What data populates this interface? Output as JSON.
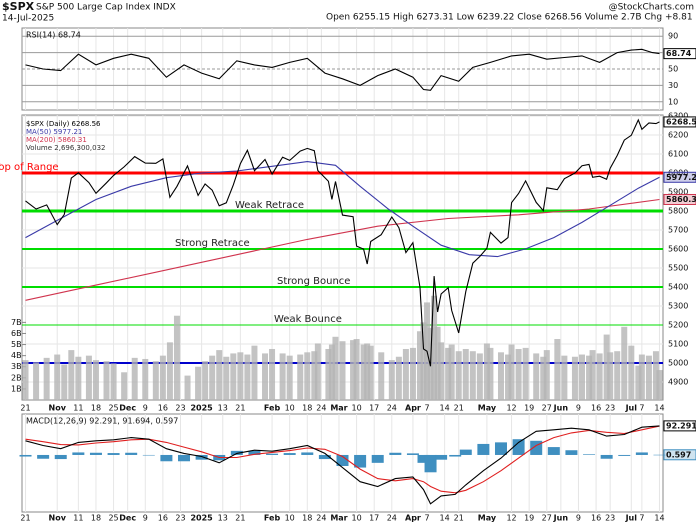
{
  "header": {
    "symbol": "$SPX",
    "name": "S&P 500 Large Cap Index INDX",
    "date": "14-Jul-2025",
    "quote": "Open 6255.15 High 6273.31 Low 6239.22 Close 6268.56 Volume 2.7B Chg +8.81 (+0.14%)",
    "source": "@StockCharts.com"
  },
  "chart_data": [
    {
      "type": "line",
      "title": "RSI(14) 68.74",
      "ylim": [
        0,
        100
      ],
      "yticks": [
        10,
        30,
        50,
        70,
        90
      ],
      "series": [
        {
          "name": "RSI(14)",
          "type": "line",
          "color": "#000000",
          "tag": "68.74",
          "x": [
            0,
            5,
            10,
            15,
            20,
            25,
            30,
            35,
            40,
            45,
            50,
            55,
            60,
            65,
            70,
            75,
            80,
            85,
            90,
            95,
            100,
            105,
            110,
            113,
            115,
            118,
            123,
            127,
            132,
            138,
            143,
            148,
            153,
            158,
            163,
            168,
            172,
            175,
            178,
            180
          ],
          "values": [
            55,
            50,
            48,
            68,
            55,
            63,
            68,
            63,
            40,
            55,
            45,
            38,
            60,
            55,
            52,
            58,
            63,
            45,
            38,
            30,
            42,
            50,
            40,
            25,
            24,
            42,
            35,
            52,
            58,
            66,
            68,
            62,
            64,
            66,
            58,
            70,
            73,
            74,
            70,
            68.74
          ]
        }
      ]
    },
    {
      "type": "line",
      "xlim": [
        -1,
        181
      ],
      "xticks": [
        {
          "value": 0,
          "label": "21"
        },
        {
          "value": 9,
          "label": "Nov"
        },
        {
          "value": 15,
          "label": "11"
        },
        {
          "value": 20,
          "label": "18"
        },
        {
          "value": 25,
          "label": "25"
        },
        {
          "value": 29,
          "label": "Dec"
        },
        {
          "value": 34,
          "label": "9"
        },
        {
          "value": 39,
          "label": "16"
        },
        {
          "value": 44,
          "label": "23"
        },
        {
          "value": 50,
          "label": "2025"
        },
        {
          "value": 56,
          "label": "13"
        },
        {
          "value": 61,
          "label": "21"
        },
        {
          "value": 70,
          "label": "Feb"
        },
        {
          "value": 75,
          "label": "10"
        },
        {
          "value": 80,
          "label": "18"
        },
        {
          "value": 84,
          "label": "24"
        },
        {
          "value": 89,
          "label": "Mar"
        },
        {
          "value": 94,
          "label": "10"
        },
        {
          "value": 99,
          "label": "17"
        },
        {
          "value": 104,
          "label": "24"
        },
        {
          "value": 110,
          "label": "Apr"
        },
        {
          "value": 114,
          "label": "7"
        },
        {
          "value": 119,
          "label": "14"
        },
        {
          "value": 123,
          "label": "21"
        },
        {
          "value": 131,
          "label": "May"
        },
        {
          "value": 138,
          "label": "12"
        },
        {
          "value": 143,
          "label": "19"
        },
        {
          "value": 148,
          "label": "27"
        },
        {
          "value": 152,
          "label": "Jun"
        },
        {
          "value": 157,
          "label": "9"
        },
        {
          "value": 162,
          "label": "16"
        },
        {
          "value": 166,
          "label": "23"
        },
        {
          "value": 172,
          "label": "Jul"
        },
        {
          "value": 175,
          "label": "7"
        },
        {
          "value": 180,
          "label": "14"
        }
      ],
      "ylim": [
        4805,
        6305
      ],
      "yticks": [
        4900,
        5000,
        5100,
        5200,
        5300,
        5400,
        5500,
        5600,
        5700,
        5800,
        5900,
        6000,
        6100,
        6200,
        6300
      ],
      "y2lim": [
        0,
        25.7
      ],
      "y2ticks": [
        {
          "value": 1,
          "label": "1B"
        },
        {
          "value": 2,
          "label": "2B"
        },
        {
          "value": 3,
          "label": "3B"
        },
        {
          "value": 4,
          "label": "4B"
        },
        {
          "value": 5,
          "label": "5B"
        },
        {
          "value": 6,
          "label": "6B"
        },
        {
          "value": 7,
          "label": "7B"
        }
      ],
      "levels": [
        {
          "value": 6000,
          "label": "Top of Range",
          "color": "#ff0000"
        },
        {
          "value": 5800,
          "label": "Weak Retrace",
          "color": "#00dd00"
        },
        {
          "value": 5600,
          "label": "Strong Retrace",
          "color": "#00dd00"
        },
        {
          "value": 5400,
          "label": "Strong Bounce",
          "color": "#00dd00"
        },
        {
          "value": 5200,
          "label": "Weak Bounce",
          "color": "#00dd00"
        },
        {
          "value": 5000,
          "color": "#0000cc"
        }
      ],
      "series": [
        {
          "name": "Volume 2,696,300,032",
          "type": "bar",
          "axis": "y2",
          "color": "#b4b4b4",
          "x": [
            0,
            3,
            6,
            9,
            11,
            13,
            15,
            18,
            20,
            23,
            25,
            28,
            31,
            34,
            37,
            39,
            41,
            43,
            46,
            49,
            51,
            53,
            55,
            57,
            59,
            61,
            63,
            65,
            68,
            70,
            73,
            75,
            78,
            80,
            82,
            83,
            86,
            87,
            88,
            90,
            93,
            94,
            96,
            97,
            98,
            101,
            104,
            106,
            108,
            110,
            112,
            113,
            114,
            115,
            116,
            117,
            118,
            120,
            121,
            123,
            125,
            127,
            129,
            131,
            132,
            135,
            137,
            138,
            140,
            142,
            145,
            147,
            148,
            151,
            153,
            156,
            158,
            160,
            161,
            163,
            165,
            166,
            168,
            170,
            172,
            174,
            175,
            177,
            179,
            180
          ],
          "values": [
            3.6,
            3.4,
            3.8,
            4.1,
            3.2,
            4.5,
            3.9,
            4.0,
            3.6,
            3.5,
            3.3,
            2.5,
            3.8,
            3.7,
            3.5,
            4.0,
            5.2,
            7.6,
            2.2,
            3.0,
            3.5,
            4.0,
            4.5,
            3.9,
            4.2,
            4.3,
            4.1,
            4.9,
            4.2,
            4.6,
            4.2,
            4.0,
            4.1,
            4.3,
            4.4,
            5.1,
            4.6,
            5.0,
            5.7,
            5.3,
            5.4,
            5.5,
            5.0,
            5.1,
            4.9,
            4.3,
            3.6,
            3.9,
            4.6,
            4.7,
            6.2,
            7.0,
            8.8,
            6.5,
            9.4,
            6.6,
            5.2,
            4.7,
            5.0,
            4.4,
            4.6,
            4.4,
            4.2,
            5.1,
            4.7,
            4.3,
            4.1,
            5.0,
            4.6,
            4.7,
            4.2,
            3.9,
            4.5,
            5.5,
            4.0,
            3.9,
            4.1,
            4.0,
            4.5,
            4.2,
            5.9,
            4.3,
            4.4,
            6.6,
            4.9,
            3.1,
            4.1,
            4.0,
            4.4,
            2.7
          ]
        },
        {
          "name": "MA(200) 5860.31",
          "type": "line",
          "color": "#d0344e",
          "tag": "5860.31",
          "x": [
            0,
            20,
            40,
            60,
            80,
            100,
            120,
            140,
            160,
            180
          ],
          "values": [
            5330,
            5410,
            5490,
            5570,
            5650,
            5720,
            5760,
            5780,
            5810,
            5860.31
          ]
        },
        {
          "name": "MA(50) 5977.21",
          "type": "line",
          "color": "#3a3aa8",
          "tag": "5977.21",
          "x": [
            0,
            10,
            20,
            30,
            40,
            50,
            60,
            70,
            80,
            88,
            95,
            103,
            110,
            118,
            126,
            134,
            142,
            150,
            158,
            166,
            174,
            180
          ],
          "values": [
            5660,
            5760,
            5860,
            5930,
            5975,
            6000,
            6010,
            6035,
            6060,
            6040,
            5930,
            5810,
            5720,
            5620,
            5570,
            5560,
            5600,
            5660,
            5740,
            5830,
            5920,
            5977.21
          ]
        },
        {
          "name": "$SPX (Daily) 6268.56",
          "type": "line",
          "color": "#000000",
          "tag": "6268.56",
          "x": [
            0,
            3,
            6,
            9,
            11,
            13,
            15,
            18,
            20,
            23,
            25,
            28,
            31,
            34,
            37,
            39,
            41,
            43,
            46,
            49,
            51,
            53,
            55,
            57,
            59,
            61,
            63,
            65,
            68,
            70,
            73,
            75,
            78,
            80,
            82,
            83,
            86,
            87,
            88,
            90,
            93,
            94,
            96,
            97,
            98,
            101,
            104,
            106,
            108,
            110,
            112,
            113,
            114,
            115,
            116,
            117,
            118,
            120,
            121,
            123,
            125,
            127,
            129,
            131,
            132,
            135,
            137,
            138,
            140,
            142,
            145,
            147,
            148,
            151,
            153,
            156,
            158,
            160,
            161,
            163,
            165,
            166,
            168,
            170,
            172,
            174,
            175,
            177,
            179,
            180
          ],
          "values": [
            5853,
            5810,
            5832,
            5728,
            5782,
            5973,
            6001,
            5949,
            5893,
            5948,
            5987,
            6032,
            6086,
            6052,
            6051,
            6074,
            5872,
            5930,
            6037,
            5882,
            5942,
            5909,
            5827,
            5843,
            5937,
            6049,
            6119,
            6012,
            6071,
            5994,
            6083,
            6066,
            6115,
            6129,
            6117,
            6013,
            5956,
            5861,
            5955,
            5778,
            5770,
            5615,
            5599,
            5521,
            5639,
            5675,
            5768,
            5712,
            5581,
            5633,
            5397,
            5074,
            5062,
            4983,
            5457,
            5268,
            5363,
            5396,
            5276,
            5158,
            5376,
            5525,
            5561,
            5604,
            5687,
            5631,
            5660,
            5844,
            5892,
            5958,
            5845,
            5802,
            5922,
            5912,
            5970,
            6000,
            6038,
            6045,
            5977,
            5983,
            5967,
            6025,
            6092,
            6173,
            6198,
            6279,
            6230,
            6263,
            6260,
            6268.56
          ]
        }
      ]
    },
    {
      "type": "line",
      "title": "MACD(12,26,9) 92.291, 91.694, 0.597",
      "ylim": [
        -181,
        130
      ],
      "series": [
        {
          "name": "Histogram",
          "type": "bar",
          "color": "#3f8fc0",
          "tag": "0.597",
          "x": [
            0,
            5,
            10,
            15,
            20,
            25,
            30,
            35,
            40,
            45,
            50,
            55,
            60,
            65,
            70,
            75,
            80,
            85,
            90,
            95,
            100,
            105,
            110,
            113,
            115,
            118,
            122,
            125,
            130,
            135,
            140,
            145,
            150,
            155,
            160,
            165,
            170,
            175,
            180
          ],
          "values": [
            -5,
            -12,
            -13,
            8,
            7,
            6,
            7,
            0,
            -20,
            -20,
            -15,
            -17,
            13,
            13,
            4,
            6,
            8,
            -13,
            -35,
            -40,
            -25,
            7,
            5,
            -25,
            -55,
            -15,
            -5,
            17,
            35,
            40,
            50,
            45,
            25,
            15,
            2,
            -12,
            -3,
            8,
            0.597
          ]
        },
        {
          "name": "Signal",
          "type": "line",
          "color": "#e02020",
          "x": [
            0,
            5,
            10,
            15,
            20,
            25,
            30,
            35,
            40,
            45,
            50,
            55,
            60,
            65,
            70,
            75,
            80,
            85,
            90,
            95,
            100,
            105,
            110,
            113,
            115,
            118,
            122,
            125,
            130,
            135,
            140,
            145,
            150,
            155,
            160,
            165,
            170,
            175,
            180
          ],
          "values": [
            50,
            42,
            33,
            32,
            38,
            42,
            48,
            50,
            40,
            25,
            10,
            -8,
            -8,
            2,
            8,
            14,
            22,
            18,
            -5,
            -45,
            -75,
            -82,
            -75,
            -85,
            -100,
            -115,
            -120,
            -112,
            -85,
            -50,
            -10,
            30,
            55,
            70,
            78,
            72,
            68,
            80,
            91.694
          ]
        },
        {
          "name": "MACD",
          "type": "line",
          "color": "#000000",
          "tag": "92.291",
          "x": [
            0,
            5,
            10,
            15,
            20,
            25,
            30,
            35,
            40,
            45,
            50,
            55,
            60,
            65,
            70,
            75,
            80,
            85,
            90,
            95,
            100,
            105,
            110,
            113,
            115,
            118,
            122,
            125,
            130,
            135,
            140,
            145,
            150,
            155,
            160,
            165,
            170,
            175,
            180
          ],
          "values": [
            45,
            30,
            20,
            40,
            45,
            48,
            55,
            50,
            20,
            5,
            -5,
            -25,
            5,
            15,
            12,
            20,
            30,
            5,
            -40,
            -85,
            -100,
            -75,
            -70,
            -110,
            -155,
            -130,
            -125,
            -95,
            -50,
            -10,
            40,
            75,
            80,
            85,
            80,
            60,
            65,
            88,
            92.291
          ]
        }
      ]
    }
  ]
}
